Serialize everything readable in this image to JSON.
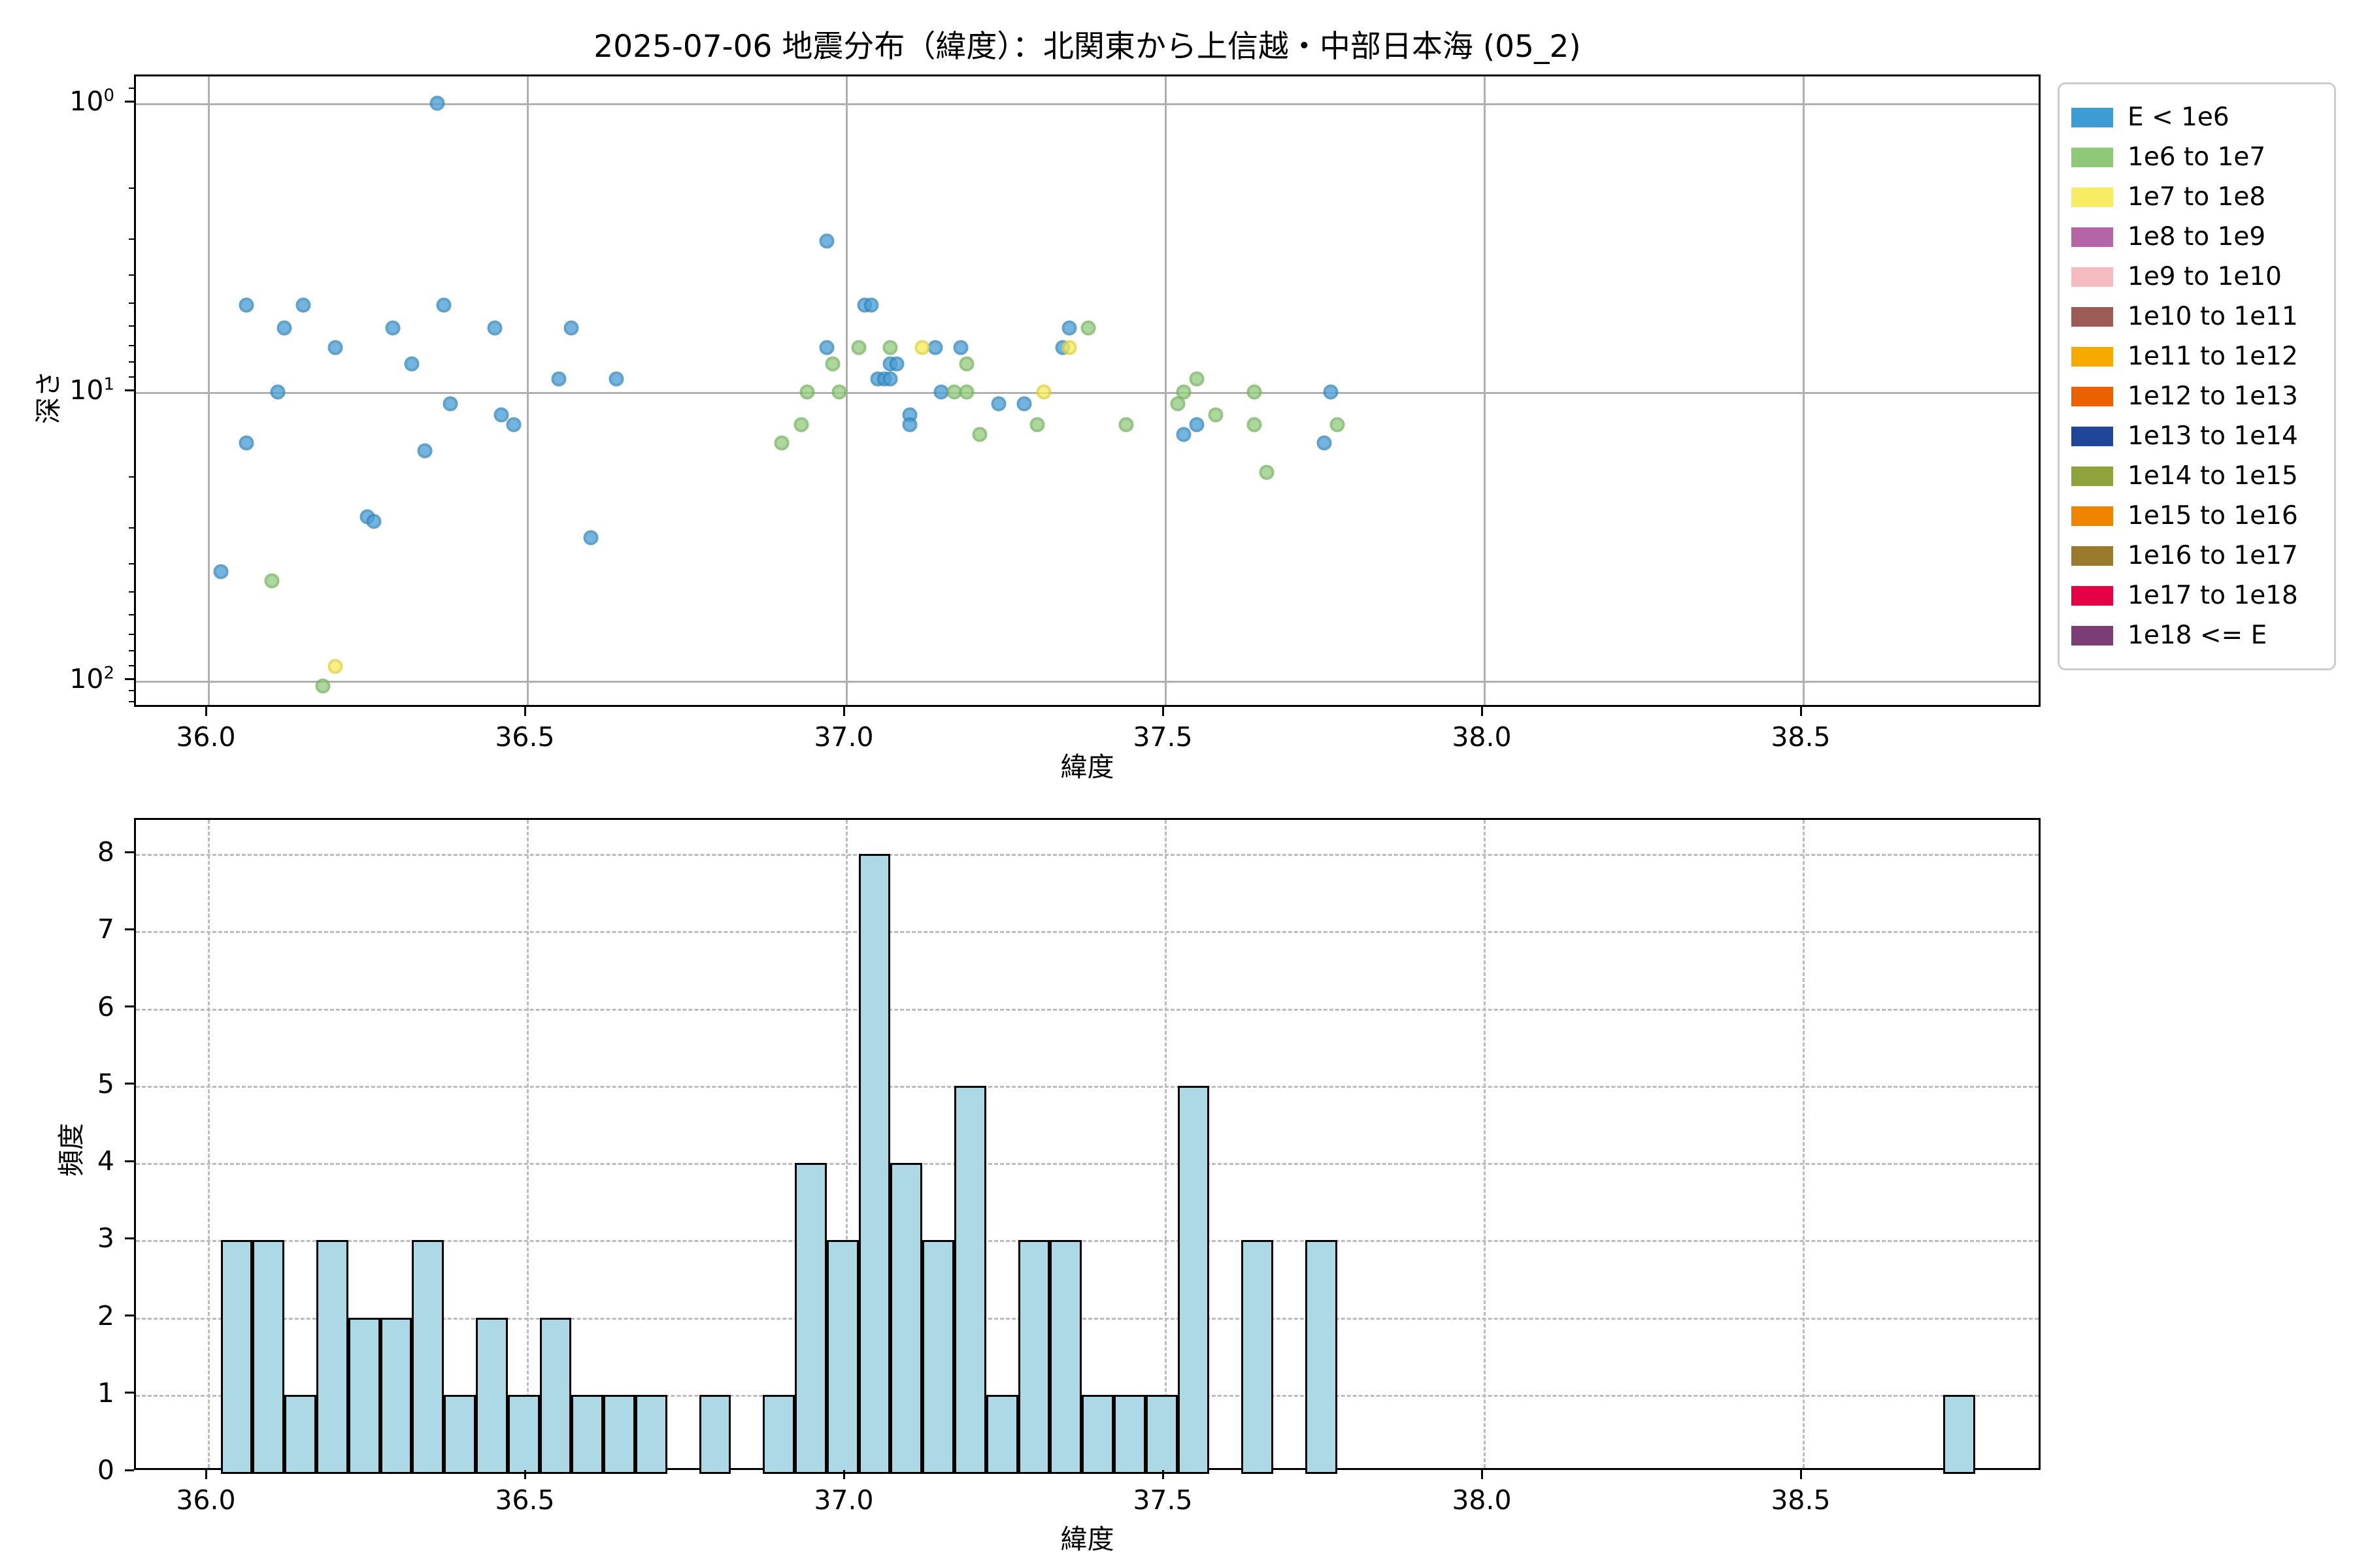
{
  "title": "2025-07-06 地震分布（緯度）：北関東から上信越・中部日本海 (05_2)",
  "colors": {
    "background": "#ffffff",
    "grid_solid": "#b0b0b0",
    "grid_dashed": "#bdbdbd",
    "hist_bar_fill": "#ADD8E6",
    "hist_bar_edge": "#000000",
    "legend_border": "#cccccc",
    "scatter_blue_fill": "#4DA1D8",
    "scatter_blue_edge": "#3588BC",
    "scatter_green_fill": "#97CC82",
    "scatter_green_edge": "#77B563",
    "scatter_yellow_fill": "#F7EC5C",
    "scatter_yellow_edge": "#E0D23E"
  },
  "legend": {
    "entries": [
      {
        "label": "E < 1e6",
        "color": "#3D9CD6"
      },
      {
        "label": "1e6 to 1e7",
        "color": "#8FC878"
      },
      {
        "label": "1e7 to 1e8",
        "color": "#F8ED62"
      },
      {
        "label": "1e8 to 1e9",
        "color": "#B565A7"
      },
      {
        "label": "1e9 to 1e10",
        "color": "#F4BCC0"
      },
      {
        "label": "1e10 to 1e11",
        "color": "#9D5B55"
      },
      {
        "label": "1e11 to 1e12",
        "color": "#F6AA00"
      },
      {
        "label": "1e12 to 1e13",
        "color": "#EB6100"
      },
      {
        "label": "1e13 to 1e14",
        "color": "#1F4699"
      },
      {
        "label": "1e14 to 1e15",
        "color": "#8FA33C"
      },
      {
        "label": "1e15 to 1e16",
        "color": "#F08300"
      },
      {
        "label": "1e16 to 1e17",
        "color": "#9A7B2D"
      },
      {
        "label": "1e17 to 1e18",
        "color": "#E50045"
      },
      {
        "label": "1e18 <= E",
        "color": "#7C3C76"
      }
    ]
  },
  "chart_data": [
    {
      "type": "scatter",
      "title": "2025-07-06 地震分布（緯度）：北関東から上信越・中部日本海 (05_2)",
      "xlabel": "緯度",
      "ylabel": "深さ",
      "xlim": [
        35.887,
        38.876
      ],
      "x_ticks": [
        36.0,
        36.5,
        37.0,
        37.5,
        38.0,
        38.5
      ],
      "y_axis": "log, inverted (depth increases downward)",
      "ylim_depth": [
        0.79,
        129
      ],
      "y_tick_exponents": [
        0,
        1,
        2
      ],
      "grid": "solid on major ticks",
      "legend_position": "outside upper right",
      "series": [
        {
          "name": "E < 1e6",
          "fill": "#4DA1D8",
          "edge": "#3588BC",
          "points_lat_depth": [
            [
              36.36,
              1.0
            ],
            [
              36.97,
              3.0
            ],
            [
              36.06,
              5.0
            ],
            [
              36.15,
              5.0
            ],
            [
              36.37,
              5.0
            ],
            [
              37.03,
              5.0
            ],
            [
              37.04,
              5.0
            ],
            [
              36.12,
              6.0
            ],
            [
              36.29,
              6.0
            ],
            [
              36.45,
              6.0
            ],
            [
              36.57,
              6.0
            ],
            [
              37.35,
              6.0
            ],
            [
              36.2,
              7.0
            ],
            [
              36.97,
              7.0
            ],
            [
              37.14,
              7.0
            ],
            [
              37.18,
              7.0
            ],
            [
              37.34,
              7.0
            ],
            [
              36.32,
              8.0
            ],
            [
              37.07,
              8.0
            ],
            [
              37.08,
              8.0
            ],
            [
              36.55,
              9.0
            ],
            [
              36.64,
              9.0
            ],
            [
              37.05,
              9.0
            ],
            [
              37.06,
              9.0
            ],
            [
              37.07,
              9.0
            ],
            [
              36.11,
              10.0
            ],
            [
              37.15,
              10.0
            ],
            [
              37.76,
              10.0
            ],
            [
              36.38,
              11.0
            ],
            [
              37.24,
              11.0
            ],
            [
              37.28,
              11.0
            ],
            [
              36.46,
              12.0
            ],
            [
              37.1,
              12.0
            ],
            [
              36.48,
              13.0
            ],
            [
              37.1,
              13.0
            ],
            [
              37.55,
              13.0
            ],
            [
              37.53,
              14.0
            ],
            [
              36.06,
              15.0
            ],
            [
              37.75,
              15.0
            ],
            [
              36.34,
              16.0
            ],
            [
              36.25,
              27.0
            ],
            [
              36.26,
              28.0
            ],
            [
              36.6,
              32.0
            ],
            [
              36.02,
              42.0
            ]
          ]
        },
        {
          "name": "1e6 to 1e7",
          "fill": "#97CC82",
          "edge": "#77B563",
          "points_lat_depth": [
            [
              37.38,
              6.0
            ],
            [
              37.02,
              7.0
            ],
            [
              37.07,
              7.0
            ],
            [
              36.98,
              8.0
            ],
            [
              37.19,
              8.0
            ],
            [
              37.55,
              9.0
            ],
            [
              36.94,
              10.0
            ],
            [
              36.99,
              10.0
            ],
            [
              37.17,
              10.0
            ],
            [
              37.19,
              10.0
            ],
            [
              37.53,
              10.0
            ],
            [
              37.64,
              10.0
            ],
            [
              37.52,
              11.0
            ],
            [
              37.58,
              12.0
            ],
            [
              36.93,
              13.0
            ],
            [
              37.3,
              13.0
            ],
            [
              37.44,
              13.0
            ],
            [
              37.64,
              13.0
            ],
            [
              37.77,
              13.0
            ],
            [
              37.21,
              14.0
            ],
            [
              36.9,
              15.0
            ],
            [
              37.66,
              19.0
            ],
            [
              36.1,
              45.0
            ],
            [
              36.18,
              104.0
            ]
          ]
        },
        {
          "name": "1e7 to 1e8",
          "fill": "#F7EC5C",
          "edge": "#E0D23E",
          "points_lat_depth": [
            [
              37.12,
              7.0
            ],
            [
              37.35,
              7.0
            ],
            [
              37.31,
              10.0
            ],
            [
              36.2,
              89.0
            ]
          ]
        }
      ]
    },
    {
      "type": "bar",
      "subtype": "histogram",
      "xlabel": "緯度",
      "ylabel": "頻度",
      "xlim": [
        35.887,
        38.876
      ],
      "x_ticks": [
        36.0,
        36.5,
        37.0,
        37.5,
        38.0,
        38.5
      ],
      "y_ticks": [
        0,
        1,
        2,
        3,
        4,
        5,
        6,
        7,
        8
      ],
      "ylim": [
        0,
        8.4
      ],
      "grid": "dashed on major ticks",
      "bar_fill": "#ADD8E6",
      "bar_edge": "#000000",
      "bin_start": 36.02,
      "bin_width": 0.05,
      "counts": [
        3,
        3,
        1,
        3,
        2,
        2,
        3,
        1,
        2,
        1,
        2,
        1,
        1,
        1,
        0,
        1,
        0,
        1,
        4,
        3,
        8,
        4,
        3,
        5,
        1,
        3,
        3,
        1,
        1,
        1,
        5,
        0,
        3,
        0,
        3,
        0,
        0,
        0,
        0,
        0,
        0,
        0,
        0,
        0,
        0,
        0,
        0,
        0,
        0,
        0,
        0,
        0,
        0,
        0,
        1
      ]
    }
  ]
}
